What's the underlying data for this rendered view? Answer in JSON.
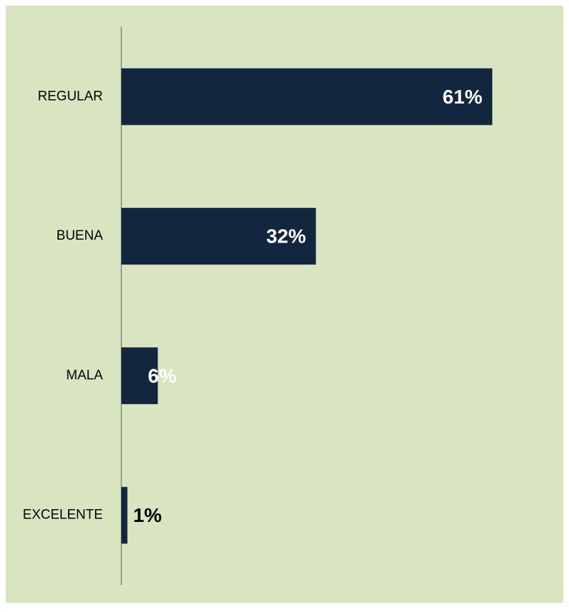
{
  "chart_data": {
    "type": "barh",
    "categories": [
      "REGULAR",
      "BUENA",
      "MALA",
      "EXCELENTE"
    ],
    "values": [
      61,
      32,
      6,
      1
    ],
    "value_labels": [
      "61%",
      "32%",
      "6%",
      "1%"
    ],
    "color": "#12263f",
    "background": "#d9e4c1",
    "xlim": [
      0,
      70
    ]
  }
}
